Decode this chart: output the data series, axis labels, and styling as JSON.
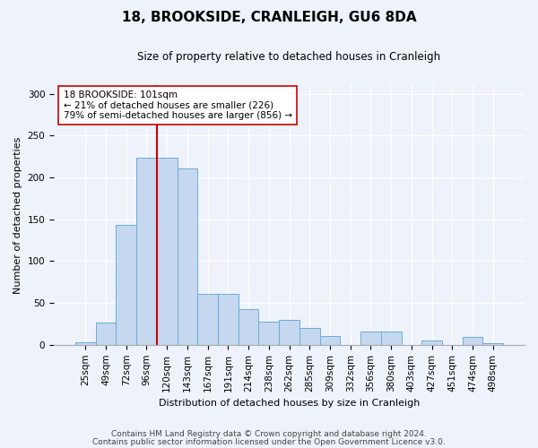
{
  "title": "18, BROOKSIDE, CRANLEIGH, GU6 8DA",
  "subtitle": "Size of property relative to detached houses in Cranleigh",
  "xlabel": "Distribution of detached houses by size in Cranleigh",
  "ylabel": "Number of detached properties",
  "footnote1": "Contains HM Land Registry data © Crown copyright and database right 2024.",
  "footnote2": "Contains public sector information licensed under the Open Government Licence v3.0.",
  "bar_labels": [
    "25sqm",
    "49sqm",
    "72sqm",
    "96sqm",
    "120sqm",
    "143sqm",
    "167sqm",
    "191sqm",
    "214sqm",
    "238sqm",
    "262sqm",
    "285sqm",
    "309sqm",
    "332sqm",
    "356sqm",
    "380sqm",
    "403sqm",
    "427sqm",
    "451sqm",
    "474sqm",
    "498sqm"
  ],
  "bar_values": [
    3,
    27,
    143,
    224,
    224,
    211,
    61,
    61,
    43,
    28,
    30,
    20,
    10,
    0,
    16,
    16,
    0,
    5,
    0,
    9,
    2
  ],
  "bar_color": "#c5d8f0",
  "bar_edgecolor": "#6aacd6",
  "ylim": [
    0,
    310
  ],
  "yticks": [
    0,
    50,
    100,
    150,
    200,
    250,
    300
  ],
  "vline_x": 3.5,
  "vline_color": "#cc0000",
  "annotation_title": "18 BROOKSIDE: 101sqm",
  "annotation_line1": "← 21% of detached houses are smaller (226)",
  "annotation_line2": "79% of semi-detached houses are larger (856) →",
  "background_color": "#eef2fb",
  "title_fontsize": 11,
  "subtitle_fontsize": 8.5,
  "axis_label_fontsize": 8,
  "tick_fontsize": 7.5,
  "footnote_fontsize": 6.5
}
